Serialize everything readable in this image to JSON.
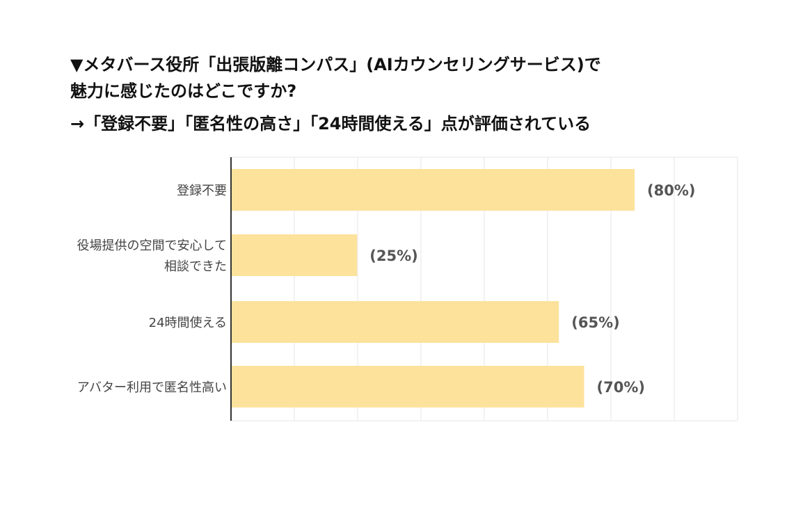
{
  "header": {
    "title_line1": "▼メタバース役所「出張版離コンパス」(AIカウンセリングサービス)で",
    "title_line2": "魅力に感じたのはどこですか?",
    "subtitle": "→「登録不要」「匿名性の高さ」「24時間使える」点が評価されている"
  },
  "colors": {
    "bar": "#fde29c",
    "grid": "#e6e6e6",
    "axis": "#333333"
  },
  "chart_data": {
    "type": "bar",
    "orientation": "horizontal",
    "title": "▼メタバース役所「出張版離コンパス」(AIカウンセリングサービス)で魅力に感じたのはどこですか?",
    "subtitle": "→「登録不要」「匿名性の高さ」「24時間使える」点が評価されている",
    "categories": [
      [
        "登録不要"
      ],
      [
        "役場提供の空間で安心して",
        "相談できた"
      ],
      [
        "24時間使える"
      ],
      [
        "アバター利用で匿名性高い"
      ]
    ],
    "values": [
      80,
      25,
      65,
      70
    ],
    "data_labels": [
      "(80%)",
      "(25%)",
      "(65%)",
      "(70%)"
    ],
    "xlim": [
      0,
      100
    ],
    "grid": true,
    "legend": "none"
  }
}
